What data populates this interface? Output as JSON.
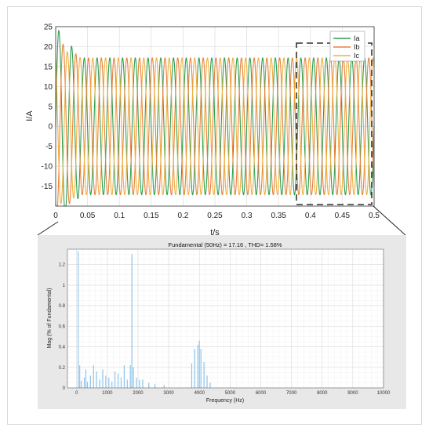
{
  "chart_data": [
    {
      "type": "line",
      "xlabel": "t/s",
      "ylabel": "I/A",
      "xlim": [
        0,
        0.5
      ],
      "ylim": [
        -20,
        25
      ],
      "xticks": [
        0,
        0.05,
        0.1,
        0.15,
        0.2,
        0.25,
        0.3,
        0.35,
        0.4,
        0.45,
        0.5
      ],
      "xtick_labels": [
        "0",
        "0.05",
        "0.1",
        "0.15",
        "0.2",
        "0.25",
        "0.3",
        "0.35",
        "0.4",
        "0.45",
        "0.5"
      ],
      "yticks": [
        -15,
        -10,
        -5,
        0,
        5,
        10,
        15,
        20,
        25
      ],
      "ytick_labels": [
        "-15",
        "-10",
        "-5",
        "0",
        "5",
        "10",
        "15",
        "20",
        "25"
      ],
      "grid": true,
      "legend_position": "top-right",
      "series": [
        {
          "name": "Ia",
          "color": "#2e9e52",
          "amplitude": 17.16,
          "frequency_hz": 50,
          "phase_deg": 0
        },
        {
          "name": "Ib",
          "color": "#e8823a",
          "amplitude": 17.16,
          "frequency_hz": 50,
          "phase_deg": -120
        },
        {
          "name": "Ic",
          "color": "#f0b040",
          "amplitude": 17.16,
          "frequency_hz": 50,
          "phase_deg": 120
        }
      ],
      "initial_peaks": [
        25,
        22,
        20
      ],
      "zoom_window": {
        "x": [
          0.38,
          0.5
        ],
        "y": [
          -20,
          21
        ]
      }
    },
    {
      "type": "bar",
      "title": "Fundamental (50Hz) = 17.16 , THD= 1.58%",
      "xlabel": "Frequency (Hz)",
      "ylabel": "Mag (% of Fundamental)",
      "xlim": [
        -300,
        10000
      ],
      "ylim": [
        0,
        1.35
      ],
      "xticks": [
        0,
        1000,
        2000,
        3000,
        4000,
        5000,
        6000,
        7000,
        8000,
        9000,
        10000
      ],
      "xtick_labels": [
        "0",
        "1000",
        "2000",
        "3000",
        "4000",
        "5000",
        "6000",
        "7000",
        "8000",
        "9000",
        "10000"
      ],
      "yticks": [
        0,
        0.2,
        0.4,
        0.6,
        0.8,
        1,
        1.2
      ],
      "ytick_labels": [
        "0",
        "0.2",
        "0.4",
        "0.6",
        "0.8",
        "1",
        "1.2"
      ],
      "grid": true,
      "bar_color": "#8fc4ea",
      "x": [
        50,
        100,
        150,
        250,
        300,
        350,
        450,
        550,
        650,
        750,
        850,
        950,
        1050,
        1150,
        1250,
        1350,
        1450,
        1550,
        1650,
        1750,
        1800,
        1850,
        1950,
        2050,
        2150,
        2350,
        2550,
        2850,
        3750,
        3850,
        3950,
        4000,
        4050,
        4150,
        4250,
        4350
      ],
      "values": [
        1.33,
        0.22,
        0.07,
        0.1,
        0.18,
        0.06,
        0.12,
        0.22,
        0.16,
        0.08,
        0.18,
        0.12,
        0.1,
        0.06,
        0.16,
        0.14,
        0.1,
        0.22,
        0.08,
        0.22,
        1.3,
        0.2,
        0.1,
        0.08,
        0.08,
        0.05,
        0.04,
        0.03,
        0.24,
        0.38,
        0.42,
        0.46,
        0.38,
        0.25,
        0.12,
        0.05
      ]
    }
  ]
}
